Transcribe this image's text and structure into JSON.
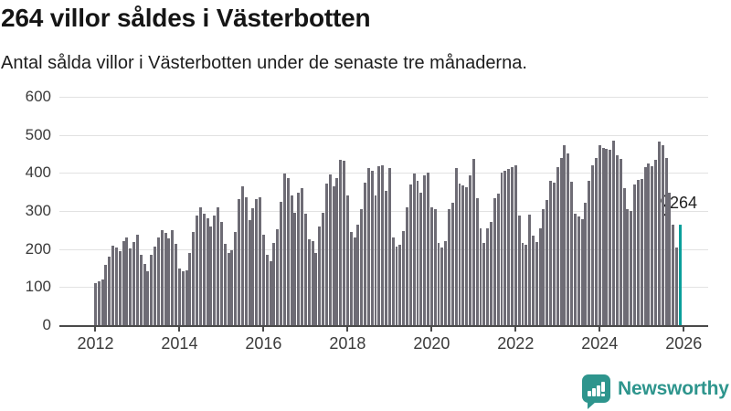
{
  "chart_data": {
    "type": "bar",
    "title": "264 villor såldes i Västerbotten",
    "subtitle": "Antal sålda villor i Västerbotten under de senaste tre månaderna.",
    "xlabel": "",
    "ylabel": "",
    "ylim": [
      0,
      600
    ],
    "yticks": [
      0,
      100,
      200,
      300,
      400,
      500,
      600
    ],
    "x_start_year": 2012,
    "xticks": [
      2012,
      2014,
      2016,
      2018,
      2020,
      2022,
      2024,
      2026
    ],
    "frequency": "monthly",
    "grid": true,
    "bar_color": "#6E6C75",
    "values": [
      110,
      115,
      119,
      159,
      181,
      209,
      205,
      194,
      222,
      230,
      202,
      218,
      238,
      186,
      161,
      141,
      186,
      206,
      231,
      249,
      243,
      228,
      250,
      213,
      150,
      141,
      143,
      189,
      244,
      288,
      310,
      294,
      280,
      260,
      288,
      310,
      272,
      213,
      189,
      197,
      244,
      332,
      364,
      336,
      276,
      308,
      332,
      336,
      237,
      185,
      169,
      217,
      252,
      324,
      399,
      387,
      340,
      296,
      348,
      360,
      292,
      225,
      221,
      189,
      260,
      296,
      371,
      395,
      364,
      387,
      435,
      431,
      340,
      246,
      230,
      263,
      304,
      374,
      412,
      405,
      342,
      417,
      421,
      354,
      412,
      231,
      207,
      211,
      247,
      310,
      370,
      398,
      380,
      348,
      394,
      402,
      309,
      304,
      215,
      203,
      221,
      304,
      322,
      412,
      372,
      367,
      362,
      394,
      437,
      334,
      255,
      215,
      255,
      271,
      334,
      346,
      402,
      405,
      410,
      415,
      421,
      287,
      215,
      211,
      290,
      236,
      218,
      255,
      306,
      329,
      380,
      375,
      415,
      440,
      472,
      452,
      377,
      294,
      286,
      278,
      321,
      379,
      421,
      440,
      474,
      466,
      463,
      460,
      484,
      447,
      437,
      361,
      306,
      299,
      369,
      381,
      383,
      416,
      424,
      418,
      434,
      482,
      474,
      440,
      349,
      265,
      205,
      264
    ],
    "highlight": {
      "index": 167,
      "value": 264,
      "label": "264",
      "color": "#0A9F9B"
    }
  },
  "footer": {
    "brand": "Newsworthy",
    "brand_color": "#2E958D"
  }
}
